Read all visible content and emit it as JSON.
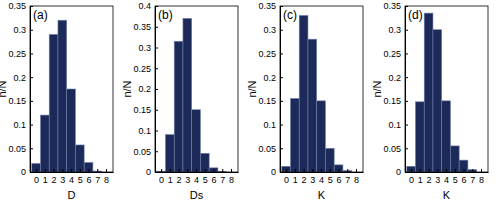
{
  "chart_data": [
    {
      "type": "histogram",
      "title": "(a)",
      "xlabel": "D",
      "ylabel": "n/N",
      "color": "#1c2a5a",
      "bins": [
        -0.5,
        0.5,
        1.5,
        2.5,
        3.5,
        4.5,
        5.5,
        6.5,
        7.5
      ],
      "values": [
        0.018,
        0.12,
        0.29,
        0.32,
        0.175,
        0.057,
        0.02,
        0.002
      ],
      "xlim": [
        -0.7,
        8.8
      ],
      "xticks": [
        0,
        1,
        2,
        3,
        4,
        5,
        6,
        7,
        8
      ],
      "ylim": [
        0,
        0.35
      ],
      "yticks": [
        0,
        0.05,
        0.1,
        0.15,
        0.2,
        0.25,
        0.3,
        0.35
      ]
    },
    {
      "type": "histogram",
      "title": "(b)",
      "xlabel": "Ds",
      "ylabel": "n/N",
      "color": "#1c2a5a",
      "bins": [
        -0.5,
        0.5,
        1.5,
        2.5,
        3.5,
        4.5,
        5.5,
        6.5,
        7.5
      ],
      "values": [
        0.002,
        0.09,
        0.315,
        0.37,
        0.15,
        0.045,
        0.01,
        0.001
      ],
      "xlim": [
        -0.7,
        8.8
      ],
      "xticks": [
        0,
        1,
        2,
        3,
        4,
        5,
        6,
        7,
        8
      ],
      "ylim": [
        0,
        0.4
      ],
      "yticks": [
        0,
        0.05,
        0.1,
        0.15,
        0.2,
        0.25,
        0.3,
        0.35,
        0.4
      ]
    },
    {
      "type": "histogram",
      "title": "(c)",
      "xlabel": "K",
      "ylabel": "n/N",
      "color": "#1c2a5a",
      "bins": [
        -0.5,
        0.5,
        1.5,
        2.5,
        3.5,
        4.5,
        5.5,
        6.5,
        7.5
      ],
      "values": [
        0.012,
        0.155,
        0.33,
        0.28,
        0.15,
        0.05,
        0.015,
        0.003
      ],
      "xlim": [
        -0.7,
        8.8
      ],
      "xticks": [
        0,
        1,
        2,
        3,
        4,
        5,
        6,
        7,
        8
      ],
      "ylim": [
        0,
        0.35
      ],
      "yticks": [
        0,
        0.05,
        0.1,
        0.15,
        0.2,
        0.25,
        0.3,
        0.35
      ]
    },
    {
      "type": "histogram",
      "title": "(d)",
      "xlabel": "K",
      "ylabel": "n/N",
      "color": "#1c2a5a",
      "bins": [
        -0.5,
        0.5,
        1.5,
        2.5,
        3.5,
        4.5,
        5.5,
        6.5,
        7.5
      ],
      "values": [
        0.012,
        0.148,
        0.335,
        0.3,
        0.15,
        0.055,
        0.025,
        0.005
      ],
      "xlim": [
        -0.7,
        8.8
      ],
      "xticks": [
        0,
        1,
        2,
        3,
        4,
        5,
        6,
        7,
        8
      ],
      "ylim": [
        0,
        0.35
      ],
      "yticks": [
        0,
        0.05,
        0.1,
        0.15,
        0.2,
        0.25,
        0.3,
        0.35
      ]
    }
  ]
}
